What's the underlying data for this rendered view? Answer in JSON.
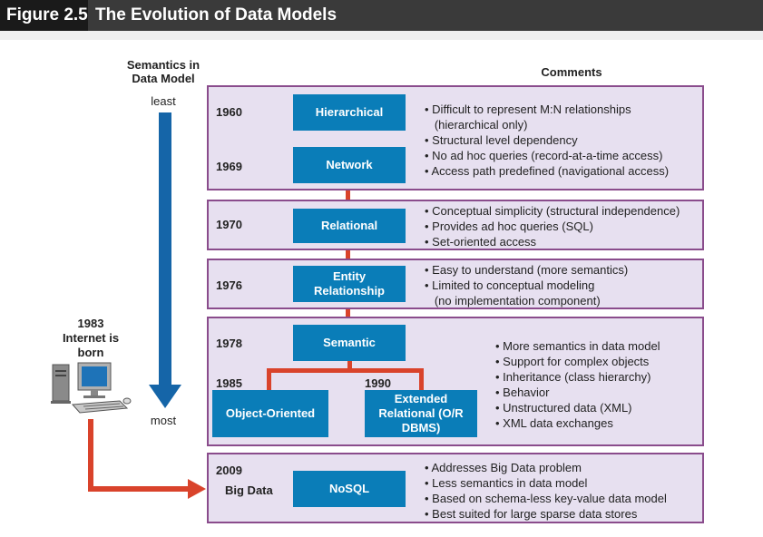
{
  "header": {
    "figure_number": "Figure 2.5",
    "title": "The Evolution of Data Models"
  },
  "semantics": {
    "title": "Semantics in Data Model",
    "least": "least",
    "most": "most"
  },
  "comments_header": "Comments",
  "internet": {
    "year": "1983",
    "label": "Internet is born"
  },
  "panels": [
    {
      "years": [
        "1960",
        "1969"
      ],
      "models": [
        "Hierarchical",
        "Network"
      ],
      "comments": [
        "• Difficult to represent M:N relationships",
        "   (hierarchical only)",
        "• Structural level dependency",
        "• No ad hoc queries (record-at-a-time access)",
        "• Access path predefined (navigational access)"
      ]
    },
    {
      "years": [
        "1970"
      ],
      "models": [
        "Relational"
      ],
      "comments": [
        "• Conceptual simplicity (structural independence)",
        "• Provides ad hoc queries (SQL)",
        "• Set-oriented access"
      ]
    },
    {
      "years": [
        "1976"
      ],
      "models": [
        "Entity Relationship"
      ],
      "comments": [
        "• Easy to understand (more semantics)",
        "• Limited to conceptual modeling",
        "   (no implementation component)"
      ]
    },
    {
      "years": [
        "1978",
        "1985",
        "1990"
      ],
      "models": [
        "Semantic",
        "Object-Oriented",
        "Extended Relational (O/R DBMS)"
      ],
      "comments": [
        "• More semantics in data model",
        "• Support for complex objects",
        "• Inheritance (class hierarchy)",
        "• Behavior",
        "• Unstructured data (XML)",
        "• XML data exchanges"
      ]
    },
    {
      "years": [
        "2009"
      ],
      "sublabel": "Big Data",
      "models": [
        "NoSQL"
      ],
      "comments": [
        "• Addresses Big Data problem",
        "• Less semantics in data model",
        "• Based on schema-less key-value data model",
        "• Best suited for large sparse data stores"
      ]
    }
  ],
  "colors": {
    "box": "#0a7db8",
    "connector": "#d9432b",
    "panel_fill": "#e7e0f0",
    "panel_border": "#8a4c8c",
    "arrow": "#1565a8"
  }
}
